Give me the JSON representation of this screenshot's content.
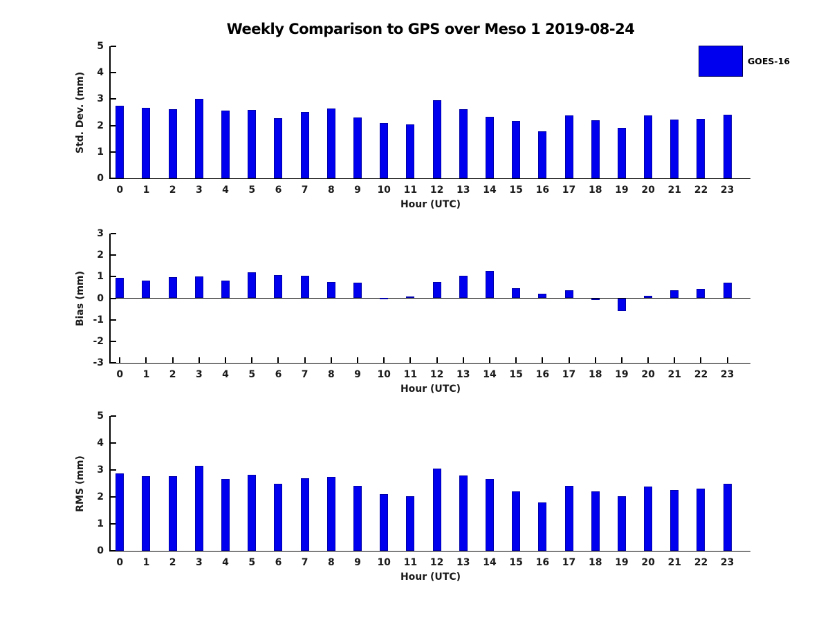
{
  "title": "Weekly Comparison to GPS over Meso 1 2019-08-24",
  "legend": {
    "label": "GOES-16",
    "swatch_color": "#0000ee"
  },
  "colors": {
    "bar_fill": "#0000ee",
    "bar_edge": "#0000aa",
    "axis": "#000000",
    "text": "#1a1a1a"
  },
  "chart_data": [
    {
      "type": "bar",
      "name": "std-dev",
      "series_name": "GOES-16",
      "ylabel": "Std. Dev. (mm)",
      "xlabel": "Hour (UTC)",
      "categories": [
        "0",
        "1",
        "2",
        "3",
        "4",
        "5",
        "6",
        "7",
        "8",
        "9",
        "10",
        "11",
        "12",
        "13",
        "14",
        "15",
        "16",
        "17",
        "18",
        "19",
        "20",
        "21",
        "22",
        "23"
      ],
      "values": [
        2.74,
        2.67,
        2.62,
        3.02,
        2.57,
        2.6,
        2.28,
        2.51,
        2.64,
        2.3,
        2.09,
        2.04,
        2.95,
        2.61,
        2.34,
        2.16,
        1.78,
        2.39,
        2.19,
        1.9,
        2.37,
        2.23,
        2.26,
        2.42
      ],
      "ylim": [
        0,
        5
      ],
      "yticks": [
        0,
        1,
        2,
        3,
        4,
        5
      ],
      "grid": false,
      "legend_position": "upper-right-outside"
    },
    {
      "type": "bar",
      "name": "bias",
      "series_name": "GOES-16",
      "ylabel": "Bias (mm)",
      "xlabel": "Hour (UTC)",
      "categories": [
        "0",
        "1",
        "2",
        "3",
        "4",
        "5",
        "6",
        "7",
        "8",
        "9",
        "10",
        "11",
        "12",
        "13",
        "14",
        "15",
        "16",
        "17",
        "18",
        "19",
        "20",
        "21",
        "22",
        "23"
      ],
      "values": [
        0.95,
        0.83,
        0.98,
        1.01,
        0.83,
        1.2,
        1.08,
        1.05,
        0.77,
        0.73,
        0.02,
        0.08,
        0.77,
        1.05,
        1.26,
        0.45,
        0.22,
        0.37,
        -0.07,
        -0.6,
        0.1,
        0.37,
        0.44,
        0.73
      ],
      "ylim": [
        -3,
        3
      ],
      "yticks": [
        -3,
        -2,
        -1,
        0,
        1,
        2,
        3
      ],
      "grid": false,
      "zero_line": true
    },
    {
      "type": "bar",
      "name": "rms",
      "series_name": "GOES-16",
      "ylabel": "RMS (mm)",
      "xlabel": "Hour (UTC)",
      "categories": [
        "0",
        "1",
        "2",
        "3",
        "4",
        "5",
        "6",
        "7",
        "8",
        "9",
        "10",
        "11",
        "12",
        "13",
        "14",
        "15",
        "16",
        "17",
        "18",
        "19",
        "20",
        "21",
        "22",
        "23"
      ],
      "values": [
        2.88,
        2.78,
        2.78,
        3.16,
        2.67,
        2.83,
        2.5,
        2.7,
        2.75,
        2.4,
        2.1,
        2.03,
        3.04,
        2.8,
        2.66,
        2.2,
        1.8,
        2.41,
        2.2,
        2.02,
        2.38,
        2.25,
        2.3,
        2.5
      ],
      "ylim": [
        0,
        5
      ],
      "yticks": [
        0,
        1,
        2,
        3,
        4,
        5
      ],
      "grid": false
    }
  ]
}
